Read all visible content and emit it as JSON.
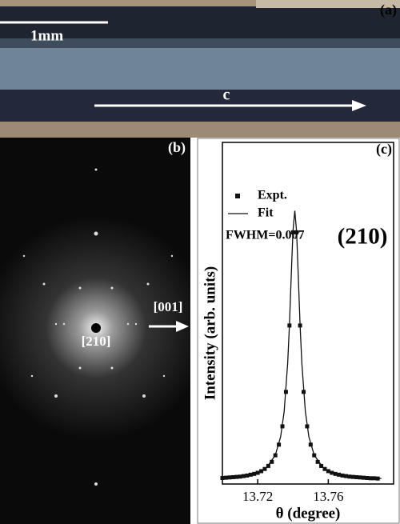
{
  "panels": {
    "a": {
      "label": "(a)",
      "scale_bar": "1mm",
      "axis": "c"
    },
    "b": {
      "label": "(b)",
      "direction": "[001]",
      "zone": "[210]"
    },
    "c": {
      "label": "(c)"
    }
  },
  "chart_data": {
    "type": "line",
    "xlabel": "θ (degree)",
    "ylabel": "Intensity (arb. units)",
    "annotations": [
      "FWHM=0.007",
      "(210)"
    ],
    "xlim": [
      13.7,
      13.797
    ],
    "xticks": [
      13.72,
      13.76
    ],
    "ylim": [
      0,
      1.25
    ],
    "series": [
      {
        "name": "Expt.",
        "color": "#111111",
        "marker": "square",
        "x": [
          13.7,
          13.702,
          13.704,
          13.706,
          13.708,
          13.71,
          13.712,
          13.714,
          13.716,
          13.718,
          13.72,
          13.722,
          13.724,
          13.726,
          13.728,
          13.73,
          13.732,
          13.734,
          13.736,
          13.738,
          13.74,
          13.742,
          13.744,
          13.746,
          13.748,
          13.75,
          13.752,
          13.754,
          13.756,
          13.758,
          13.76,
          13.762,
          13.764,
          13.766,
          13.768,
          13.77,
          13.772,
          13.774,
          13.776,
          13.778,
          13.78,
          13.782,
          13.784,
          13.786,
          13.788
        ],
        "values": [
          0.022,
          0.023,
          0.024,
          0.025,
          0.026,
          0.027,
          0.029,
          0.031,
          0.034,
          0.037,
          0.041,
          0.047,
          0.055,
          0.066,
          0.081,
          0.105,
          0.144,
          0.211,
          0.337,
          0.58,
          0.921,
          0.921,
          0.58,
          0.337,
          0.211,
          0.144,
          0.105,
          0.081,
          0.066,
          0.055,
          0.047,
          0.041,
          0.037,
          0.034,
          0.031,
          0.029,
          0.027,
          0.026,
          0.025,
          0.024,
          0.023,
          0.022,
          0.021,
          0.021,
          0.02
        ]
      },
      {
        "name": "Fit",
        "color": "#111111",
        "marker": "none",
        "x": [
          13.7,
          13.71,
          13.72,
          13.725,
          13.73,
          13.733,
          13.735,
          13.737,
          13.738,
          13.739,
          13.74,
          13.741,
          13.742,
          13.743,
          13.744,
          13.745,
          13.747,
          13.749,
          13.752,
          13.757,
          13.762,
          13.77,
          13.78,
          13.79
        ],
        "values": [
          0.022,
          0.027,
          0.042,
          0.06,
          0.106,
          0.173,
          0.265,
          0.442,
          0.582,
          0.757,
          0.925,
          1.0,
          0.925,
          0.757,
          0.582,
          0.442,
          0.265,
          0.173,
          0.106,
          0.06,
          0.042,
          0.029,
          0.023,
          0.02
        ]
      }
    ]
  }
}
